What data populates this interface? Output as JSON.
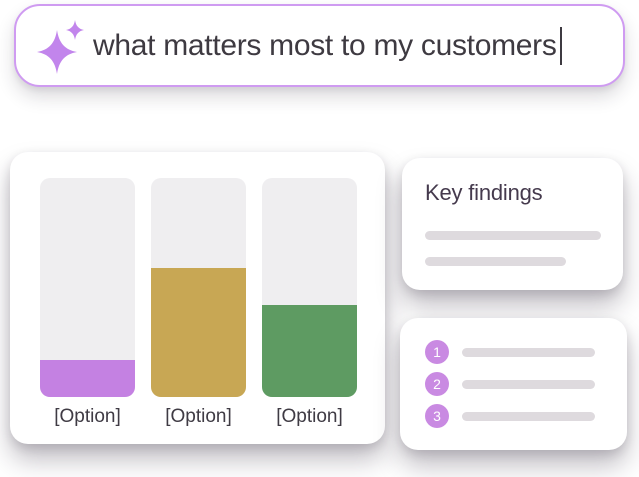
{
  "prompt_bar": {
    "text": "what matters most to my customers",
    "border_color": "#cf9bf1",
    "sparkle_color": "#c285ec",
    "text_color": "#3e3a41"
  },
  "chart_data": {
    "type": "bar",
    "categories": [
      "[Option]",
      "[Option]",
      "[Option]"
    ],
    "values": [
      17,
      59,
      42
    ],
    "value_note": "estimated fill percent of each bar track, no numeric labels shown",
    "bar_colors": [
      "#c481e2",
      "#c8a754",
      "#5e9b62"
    ],
    "track_color": "#efeef0",
    "title": "",
    "xlabel": "",
    "ylabel": "",
    "ylim": [
      0,
      100
    ],
    "grid": false,
    "legend": false
  },
  "key_findings_card": {
    "title": "Key findings",
    "placeholder_line_count": 2,
    "placeholder_color": "#dedade"
  },
  "numbered_list_card": {
    "badge_color": "#c98ae2",
    "items": [
      {
        "number": "1"
      },
      {
        "number": "2"
      },
      {
        "number": "3"
      }
    ]
  }
}
